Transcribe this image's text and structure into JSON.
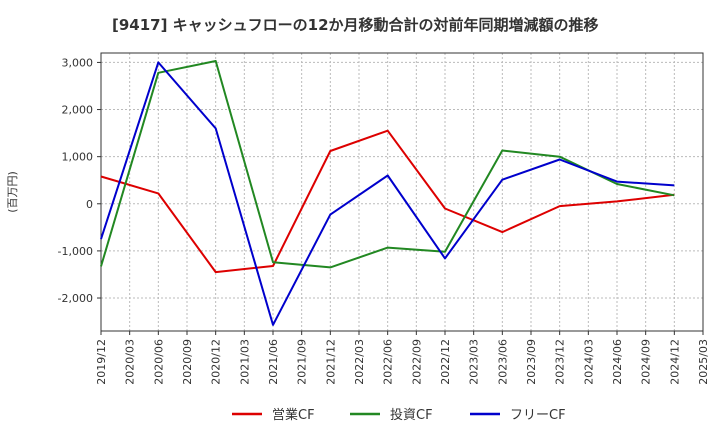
{
  "chart_data": {
    "type": "line",
    "title": "[9417]  キャッシュフローの12か月移動合計の対前年同期増減額の推移",
    "ylabel": "(百万円)",
    "xlabel": "",
    "ylim": [
      -2700,
      3200
    ],
    "yticks": [
      3000,
      2000,
      1000,
      0,
      -1000,
      -2000
    ],
    "ytick_labels": [
      "3,000",
      "2,000",
      "1,000",
      "0",
      "-1,000",
      "-2,000"
    ],
    "x": [
      "2019/12",
      "2020/03",
      "2020/06",
      "2020/09",
      "2020/12",
      "2021/03",
      "2021/06",
      "2021/09",
      "2021/12",
      "2022/03",
      "2022/06",
      "2022/09",
      "2022/12",
      "2023/03",
      "2023/06",
      "2023/09",
      "2023/12",
      "2024/03",
      "2024/06",
      "2024/09",
      "2024/12",
      "2025/03"
    ],
    "grid": true,
    "legend_position": "bottom",
    "series": [
      {
        "name": "営業CF",
        "color": "#dd0000",
        "points": [
          [
            "2019/12",
            580
          ],
          [
            "2020/06",
            220
          ],
          [
            "2020/12",
            -1450
          ],
          [
            "2021/06",
            -1320
          ],
          [
            "2021/12",
            1120
          ],
          [
            "2022/06",
            1550
          ],
          [
            "2022/12",
            -100
          ],
          [
            "2023/06",
            -600
          ],
          [
            "2023/12",
            -50
          ],
          [
            "2024/06",
            50
          ],
          [
            "2024/12",
            190
          ]
        ]
      },
      {
        "name": "投資CF",
        "color": "#228822",
        "points": [
          [
            "2019/12",
            -1330
          ],
          [
            "2020/06",
            2780
          ],
          [
            "2020/12",
            3030
          ],
          [
            "2021/06",
            -1240
          ],
          [
            "2021/12",
            -1350
          ],
          [
            "2022/06",
            -930
          ],
          [
            "2022/12",
            -1020
          ],
          [
            "2023/06",
            1130
          ],
          [
            "2023/12",
            1000
          ],
          [
            "2024/06",
            420
          ],
          [
            "2024/12",
            180
          ]
        ]
      },
      {
        "name": "フリーCF",
        "color": "#0000cc",
        "points": [
          [
            "2019/12",
            -750
          ],
          [
            "2020/06",
            3000
          ],
          [
            "2020/12",
            1600
          ],
          [
            "2021/06",
            -2570
          ],
          [
            "2021/12",
            -230
          ],
          [
            "2022/06",
            600
          ],
          [
            "2022/12",
            -1160
          ],
          [
            "2023/06",
            510
          ],
          [
            "2023/12",
            940
          ],
          [
            "2024/06",
            470
          ],
          [
            "2024/12",
            390
          ]
        ]
      }
    ]
  }
}
